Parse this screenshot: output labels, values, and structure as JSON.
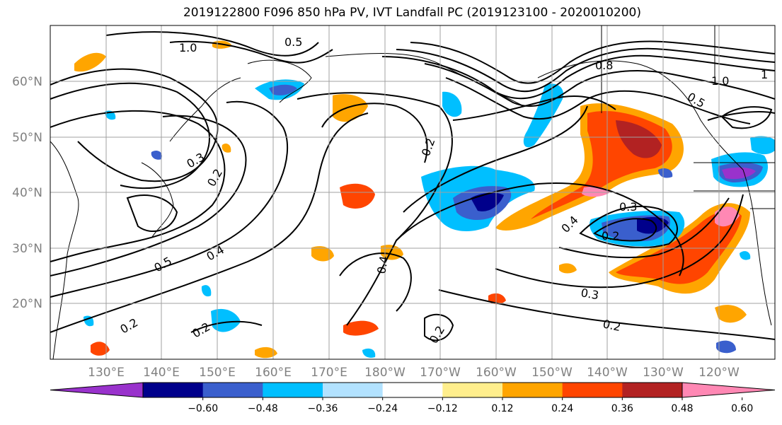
{
  "title": "2019122800 F096 850 hPa PV, IVT Landfall PC (2019123100 - 2020010200)",
  "lat_labels": [
    "60°N",
    "50°N",
    "40°N",
    "30°N",
    "20°N"
  ],
  "lon_labels": [
    "130°E",
    "140°E",
    "150°E",
    "160°E",
    "170°E",
    "180°W",
    "170°W",
    "160°W",
    "150°W",
    "140°W",
    "130°W",
    "120°W"
  ],
  "colorbar": {
    "colors": [
      "#9932cc",
      "#00008b",
      "#3a5fcd",
      "#00bfff",
      "#b2e2ff",
      "#ffffff",
      "#ffee8c",
      "#ffa500",
      "#ff4500",
      "#b22222",
      "#ff88b4"
    ],
    "tick_labels": [
      "−0.60",
      "−0.48",
      "−0.36",
      "−0.24",
      "−0.12",
      "0.12",
      "0.24",
      "0.36",
      "0.48",
      "0.60"
    ]
  },
  "contour_labels": [
    "1.0",
    "0.5",
    "0.4",
    "0.2",
    "0.3",
    "0.2",
    "0.3",
    "0.2",
    "0.3",
    "0.2",
    "0.5",
    "0.4",
    "0.2",
    "0.2",
    "0.8",
    "1",
    "0.5",
    "0.4",
    "0.2",
    "1.0"
  ]
}
